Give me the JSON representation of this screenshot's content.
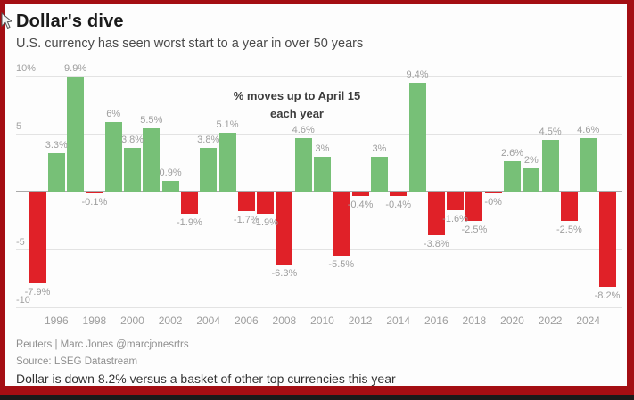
{
  "header": {
    "title": "Dollar's dive",
    "subtitle": "U.S. currency has seen worst start to a year in over 50 years"
  },
  "annotation": {
    "line1": "% moves up to April 15",
    "line2": "each year"
  },
  "footer": {
    "credit": "Reuters | Marc Jones @marcjonesrtrs",
    "source": "Source: LSEG Datastream",
    "note": "Dollar is down 8.2% versus a basket of other top currencies this year"
  },
  "colors": {
    "positive": "#77c077",
    "negative": "#e02128",
    "frame": "#a40e13",
    "grid": "#e3e3e3",
    "zero_axis": "#a9a9a9",
    "tick_text": "#9e9e9e"
  },
  "chart_data": {
    "type": "bar",
    "title": "Dollar's dive",
    "subtitle": "U.S. currency has seen worst start to a year in over 50 years",
    "annotation": "% moves up to April 15 each year",
    "xlabel": "",
    "ylabel": "%",
    "ylim": [
      -10,
      10
    ],
    "grid": "horizontal",
    "legend": "none",
    "y_ticks": [
      {
        "label": "10%",
        "value": 10
      },
      {
        "label": "5",
        "value": 5
      },
      {
        "label": "-5",
        "value": -5
      },
      {
        "label": "-10",
        "value": -10
      }
    ],
    "x_tick_years": [
      1996,
      1998,
      2000,
      2002,
      2004,
      2006,
      2008,
      2010,
      2012,
      2014,
      2016,
      2018,
      2020,
      2022,
      2024
    ],
    "points": [
      {
        "year": 1995,
        "value": -7.9,
        "label": "-7.9%"
      },
      {
        "year": 1996,
        "value": 3.3,
        "label": "3.3%"
      },
      {
        "year": 1997,
        "value": 9.9,
        "label": "9.9%"
      },
      {
        "year": 1998,
        "value": -0.1,
        "label": "-0.1%"
      },
      {
        "year": 1999,
        "value": 6,
        "label": "6%"
      },
      {
        "year": 2000,
        "value": 3.8,
        "label": "3.8%"
      },
      {
        "year": 2001,
        "value": 5.5,
        "label": "5.5%"
      },
      {
        "year": 2002,
        "value": 0.9,
        "label": "0.9%"
      },
      {
        "year": 2003,
        "value": -1.9,
        "label": "-1.9%"
      },
      {
        "year": 2004,
        "value": 3.8,
        "label": "3.8%"
      },
      {
        "year": 2005,
        "value": 5.1,
        "label": "5.1%"
      },
      {
        "year": 2006,
        "value": -1.7,
        "label": "-1.7%"
      },
      {
        "year": 2007,
        "value": -1.9,
        "label": "-1.9%"
      },
      {
        "year": 2008,
        "value": -6.3,
        "label": "-6.3%"
      },
      {
        "year": 2009,
        "value": 4.6,
        "label": "4.6%"
      },
      {
        "year": 2010,
        "value": 3,
        "label": "3%"
      },
      {
        "year": 2011,
        "value": -5.5,
        "label": "-5.5%"
      },
      {
        "year": 2012,
        "value": -0.4,
        "label": "-0.4%"
      },
      {
        "year": 2013,
        "value": 3,
        "label": "3%"
      },
      {
        "year": 2014,
        "value": -0.4,
        "label": "-0.4%"
      },
      {
        "year": 2015,
        "value": 9.4,
        "label": "9.4%"
      },
      {
        "year": 2016,
        "value": -3.8,
        "label": "-3.8%"
      },
      {
        "year": 2017,
        "value": -1.6,
        "label": "-1.6%"
      },
      {
        "year": 2018,
        "value": -2.5,
        "label": "-2.5%"
      },
      {
        "year": 2019,
        "value": 0,
        "label": "-0%"
      },
      {
        "year": 2020,
        "value": 2.6,
        "label": "2.6%"
      },
      {
        "year": 2021,
        "value": 2,
        "label": "2%"
      },
      {
        "year": 2022,
        "value": 4.5,
        "label": "4.5%"
      },
      {
        "year": 2023,
        "value": -2.5,
        "label": "-2.5%"
      },
      {
        "year": 2024,
        "value": 4.6,
        "label": "4.6%"
      },
      {
        "year": 2025,
        "value": -8.2,
        "label": "-8.2%"
      }
    ]
  }
}
